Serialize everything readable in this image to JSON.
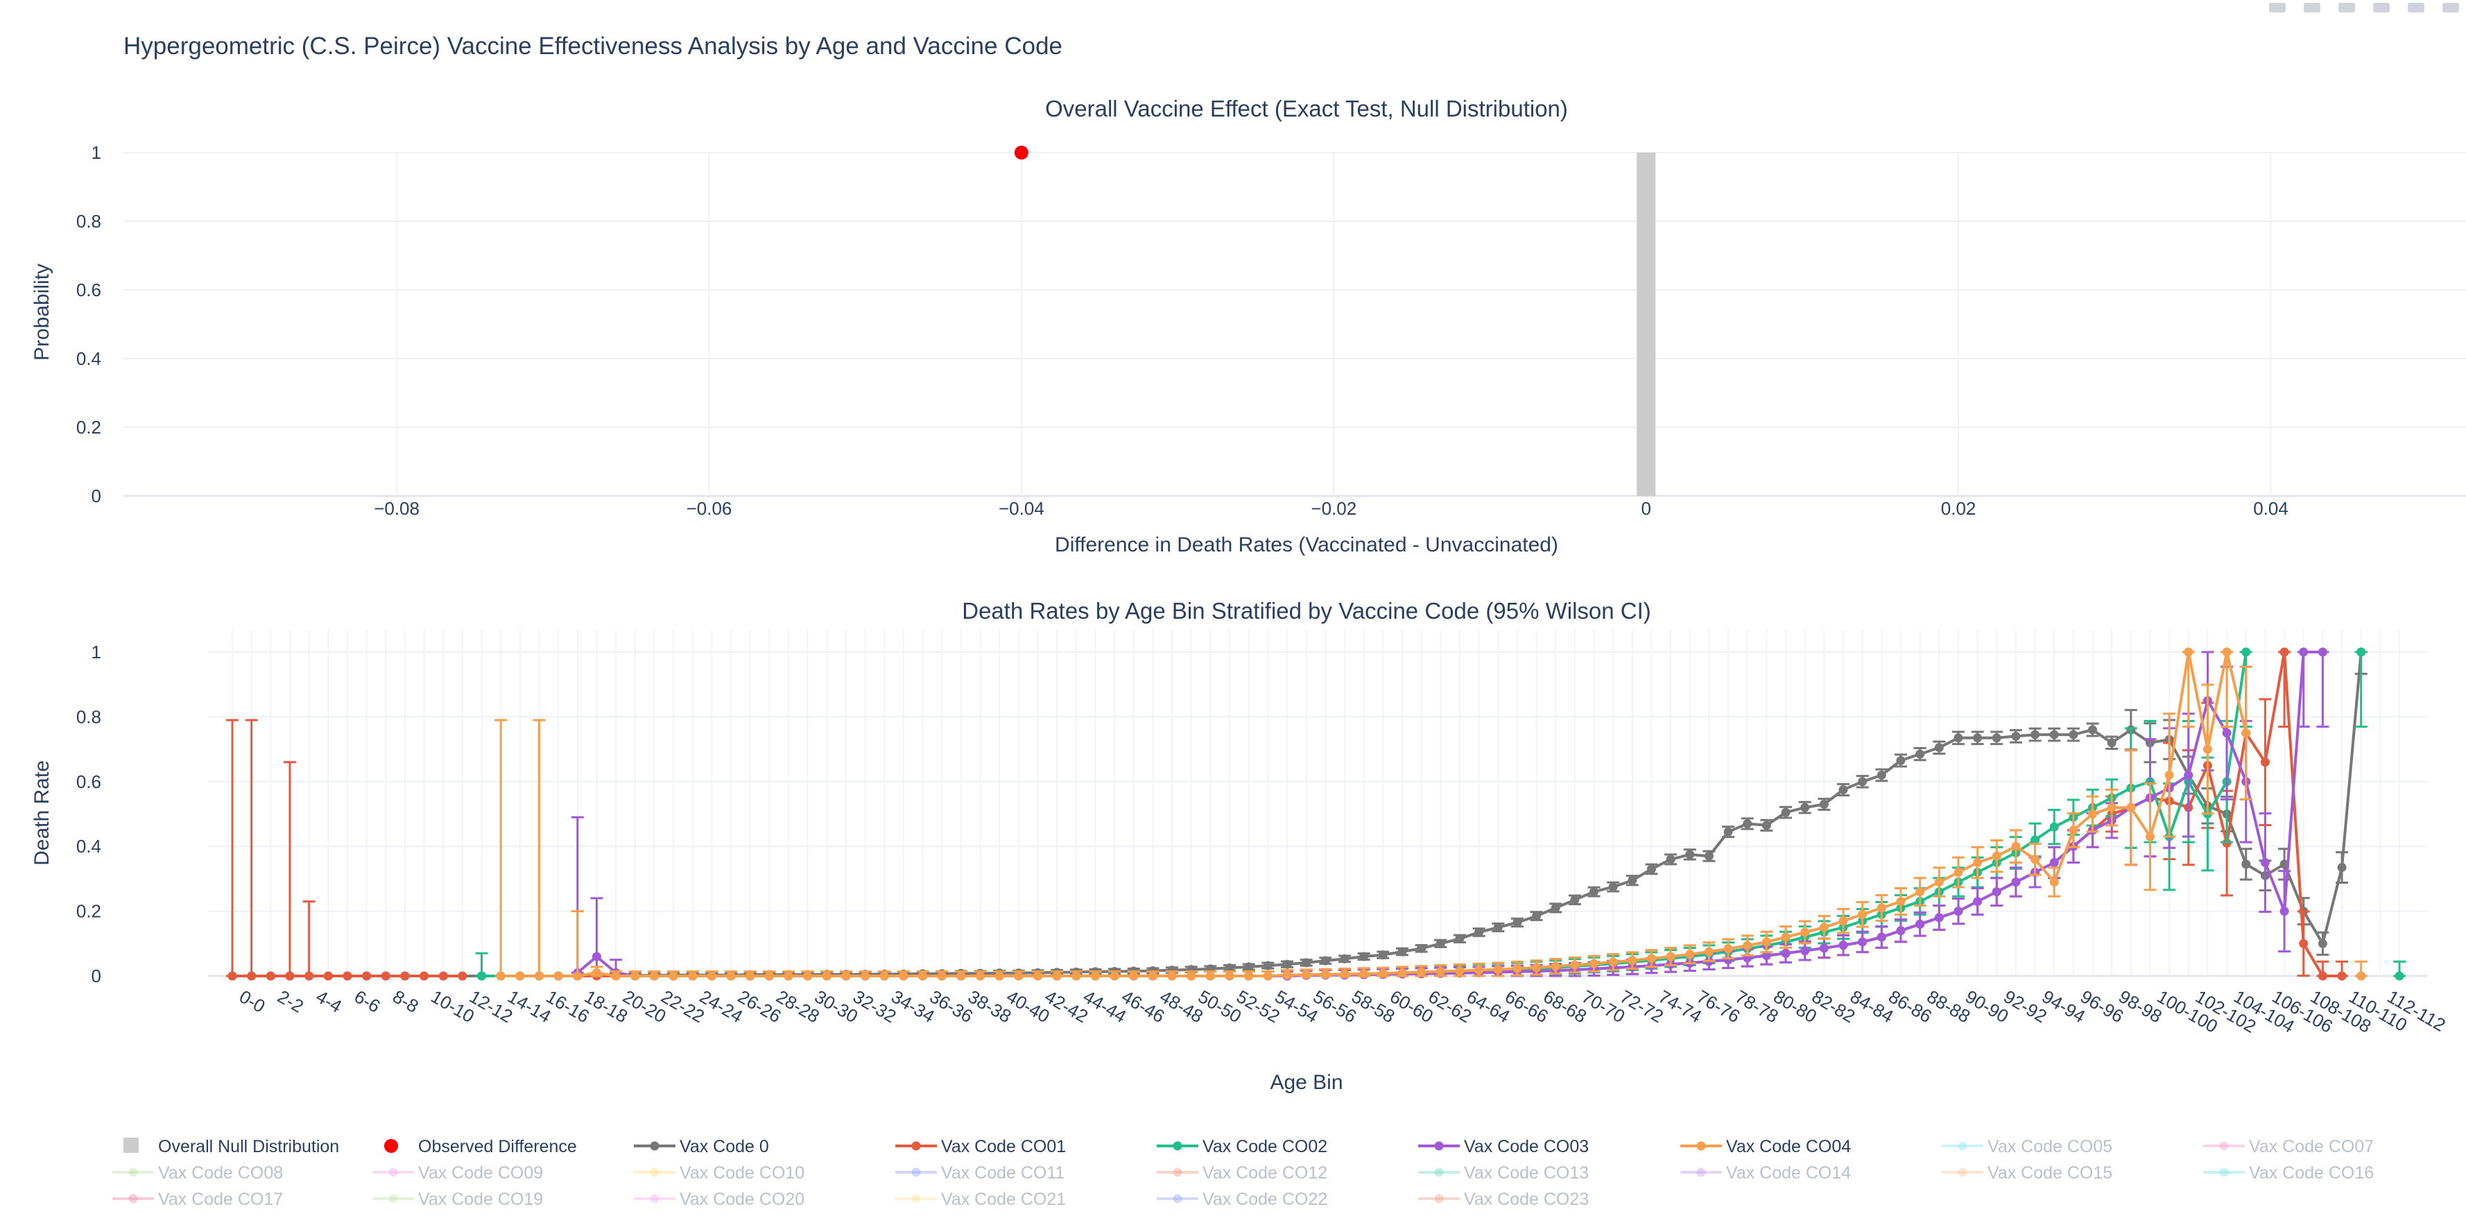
{
  "title": "Hypergeometric (C.S. Peirce) Vaccine Effectiveness Analysis by Age and Vaccine Code",
  "colors": {
    "null": "#cccccc",
    "observed": "#ff0000",
    "text": "#2a3f5f",
    "grid": "#eef0f4",
    "zeroline": "#e3e6eb"
  },
  "modebar": [
    "camera-icon",
    "zoom-icon",
    "pan-icon",
    "box-select-icon",
    "lasso-icon",
    "autoscale-icon"
  ],
  "chart_data": [
    {
      "type": "bar",
      "title": "Overall Vaccine Effect (Exact Test, Null Distribution)",
      "xlabel": "Difference in Death Rates (Vaccinated - Unvaccinated)",
      "ylabel": "Probability",
      "xlim": [
        -0.0975,
        0.0525
      ],
      "ylim": [
        0,
        1
      ],
      "x_ticks": [
        "−0.08",
        "−0.06",
        "−0.04",
        "−0.02",
        "0",
        "0.02",
        "0.04"
      ],
      "x_tick_values": [
        -0.08,
        -0.06,
        -0.04,
        -0.02,
        0,
        0.02,
        0.04
      ],
      "y_ticks": [
        "0",
        "0.2",
        "0.4",
        "0.6",
        "0.8",
        "1"
      ],
      "y_tick_values": [
        0,
        0.2,
        0.4,
        0.6,
        0.8,
        1
      ],
      "null_distribution": {
        "name": "Overall Null Distribution",
        "x": [
          0
        ],
        "y": [
          1
        ],
        "bar_width": 0.0012
      },
      "observed": {
        "name": "Observed Difference",
        "x": -0.04,
        "y": 1
      }
    },
    {
      "type": "line",
      "title": "Death Rates by Age Bin Stratified by Vaccine Code (95% Wilson CI)",
      "xlabel": "Age Bin",
      "ylabel": "Death Rate",
      "ylim": [
        0,
        1
      ],
      "y_ticks": [
        "0",
        "0.2",
        "0.4",
        "0.6",
        "0.8",
        "1"
      ],
      "y_tick_values": [
        0,
        0.2,
        0.4,
        0.6,
        0.8,
        1
      ],
      "x_tick_labels": [
        "0-0",
        "2-2",
        "4-4",
        "6-6",
        "8-8",
        "10-10",
        "12-12",
        "14-14",
        "16-16",
        "18-18",
        "20-20",
        "22-22",
        "24-24",
        "26-26",
        "28-28",
        "30-30",
        "32-32",
        "34-34",
        "36-36",
        "38-38",
        "40-40",
        "42-42",
        "44-44",
        "46-46",
        "48-48",
        "50-50",
        "52-52",
        "54-54",
        "56-56",
        "58-58",
        "60-60",
        "62-62",
        "64-64",
        "66-66",
        "68-68",
        "70-70",
        "72-72",
        "74-74",
        "76-76",
        "78-78",
        "80-80",
        "82-82",
        "84-84",
        "86-86",
        "88-88",
        "90-90",
        "92-92",
        "94-94",
        "96-96",
        "98-98",
        "100-100",
        "102-102",
        "104-104",
        "106-106",
        "108-108",
        "110-110",
        "112-112"
      ],
      "ages": [
        0,
        1,
        2,
        3,
        4,
        5,
        6,
        7,
        8,
        9,
        10,
        11,
        12,
        13,
        14,
        15,
        16,
        17,
        18,
        19,
        20,
        21,
        22,
        23,
        24,
        25,
        26,
        27,
        28,
        29,
        30,
        31,
        32,
        33,
        34,
        35,
        36,
        37,
        38,
        39,
        40,
        41,
        42,
        43,
        44,
        45,
        46,
        47,
        48,
        49,
        50,
        51,
        52,
        53,
        54,
        55,
        56,
        57,
        58,
        59,
        60,
        61,
        62,
        63,
        64,
        65,
        66,
        67,
        68,
        69,
        70,
        71,
        72,
        73,
        74,
        75,
        76,
        77,
        78,
        79,
        80,
        81,
        82,
        83,
        84,
        85,
        86,
        87,
        88,
        89,
        90,
        91,
        92,
        93,
        94,
        95,
        96,
        97,
        98,
        99,
        100,
        101,
        102,
        103,
        104,
        105,
        106,
        107,
        108,
        109,
        110,
        111,
        112,
        113
      ],
      "series": [
        {
          "name": "Vax Code 0",
          "color": "#777777",
          "values": [
            0,
            0,
            0,
            0,
            0,
            0,
            0,
            0,
            0,
            0,
            0,
            0,
            0,
            0,
            0,
            0,
            0,
            0,
            0,
            0.002,
            0.002,
            0.002,
            0.002,
            0.003,
            0.003,
            0.003,
            0.003,
            0.004,
            0.004,
            0.004,
            0.004,
            0.005,
            0.005,
            0.005,
            0.006,
            0.006,
            0.007,
            0.007,
            0.008,
            0.008,
            0.009,
            0.009,
            0.01,
            0.011,
            0.012,
            0.013,
            0.014,
            0.015,
            0.016,
            0.018,
            0.02,
            0.022,
            0.025,
            0.028,
            0.032,
            0.036,
            0.041,
            0.047,
            0.053,
            0.06,
            0.065,
            0.075,
            0.085,
            0.1,
            0.115,
            0.135,
            0.15,
            0.165,
            0.185,
            0.21,
            0.235,
            0.26,
            0.275,
            0.295,
            0.33,
            0.36,
            0.375,
            0.37,
            0.445,
            0.47,
            0.465,
            0.505,
            0.52,
            0.53,
            0.575,
            0.6,
            0.62,
            0.665,
            0.685,
            0.705,
            0.735,
            0.735,
            0.735,
            0.74,
            0.745,
            0.745,
            0.745,
            0.76,
            0.72,
            0.76,
            0.72,
            0.73,
            0.62,
            0.525,
            0.5,
            0.345,
            0.31,
            0.345,
            0.2,
            0.1,
            0.335,
            1,
            null,
            null
          ],
          "ci_low": [],
          "ci_high": []
        },
        {
          "name": "Vax Code CO01",
          "color": "#e45a3d",
          "values": [
            0,
            0,
            0,
            0,
            0,
            0,
            0,
            0,
            0,
            0,
            0,
            0,
            0,
            null,
            null,
            null,
            null,
            0,
            0,
            0,
            0,
            0,
            0,
            0,
            0,
            0,
            0,
            0,
            0,
            0,
            0,
            0,
            0,
            0,
            0,
            0,
            0,
            0,
            0,
            0,
            0,
            0,
            0,
            0,
            0,
            0,
            0,
            0,
            0,
            0,
            0,
            0,
            0,
            0,
            0,
            0,
            0.002,
            0.003,
            0.003,
            0.004,
            0.005,
            0.006,
            0.007,
            0.008,
            0.009,
            0.01,
            0.012,
            0.013,
            0.015,
            0.017,
            0.019,
            0.022,
            0.025,
            0.028,
            0.032,
            0.036,
            0.04,
            0.045,
            0.05,
            0.056,
            0.063,
            0.07,
            0.078,
            0.086,
            0.095,
            0.105,
            0.12,
            0.14,
            0.16,
            0.18,
            0.2,
            0.23,
            0.26,
            0.29,
            0.32,
            0.35,
            0.4,
            0.45,
            0.5,
            0.52,
            0.55,
            0.54,
            0.52,
            0.65,
            0.41,
            0.75,
            0.66,
            1,
            0.1,
            0,
            0,
            null,
            null,
            null
          ],
          "ci_low": [],
          "ci_high": []
        },
        {
          "name": "Vax Code CO02",
          "color": "#1fbe8a",
          "values": [
            null,
            null,
            null,
            null,
            null,
            null,
            null,
            null,
            null,
            null,
            null,
            null,
            null,
            0,
            0,
            0,
            0,
            0,
            null,
            null,
            null,
            null,
            null,
            null,
            null,
            null,
            null,
            null,
            null,
            null,
            null,
            null,
            null,
            null,
            null,
            null,
            null,
            null,
            null,
            null,
            null,
            null,
            null,
            null,
            null,
            null,
            null,
            null,
            null,
            null,
            null,
            null,
            null,
            null,
            null,
            null,
            null,
            null,
            0.005,
            0.006,
            0.007,
            0.008,
            0.01,
            0.012,
            0.014,
            0.016,
            0.018,
            0.02,
            0.023,
            0.026,
            0.03,
            0.034,
            0.038,
            0.043,
            0.048,
            0.054,
            0.06,
            0.067,
            0.075,
            0.084,
            0.094,
            0.105,
            0.12,
            0.135,
            0.15,
            0.17,
            0.19,
            0.21,
            0.23,
            0.26,
            0.29,
            0.32,
            0.35,
            0.38,
            0.42,
            0.46,
            0.49,
            0.52,
            0.55,
            0.58,
            0.6,
            0.43,
            0.6,
            0.5,
            0.6,
            1,
            null,
            null,
            null,
            null,
            null,
            1,
            null,
            0
          ],
          "ci_low": [],
          "ci_high": []
        },
        {
          "name": "Vax Code CO03",
          "color": "#a05ad7",
          "values": [
            null,
            null,
            null,
            null,
            null,
            null,
            null,
            null,
            null,
            null,
            null,
            null,
            null,
            null,
            null,
            null,
            null,
            null,
            0.01,
            0.06,
            0.01,
            0,
            0,
            0,
            0,
            0,
            0,
            0,
            0,
            0,
            0,
            0,
            0,
            0,
            0,
            0,
            0,
            0,
            0,
            0,
            0,
            0,
            0,
            0,
            0,
            0,
            0,
            0,
            0,
            0,
            0,
            0,
            0,
            0,
            0,
            0,
            0.002,
            0.003,
            0.003,
            0.004,
            0.005,
            0.006,
            0.007,
            0.008,
            0.009,
            0.01,
            0.012,
            0.013,
            0.015,
            0.017,
            0.019,
            0.022,
            0.025,
            0.028,
            0.032,
            0.036,
            0.04,
            0.045,
            0.05,
            0.056,
            0.063,
            0.07,
            0.078,
            0.086,
            0.095,
            0.105,
            0.12,
            0.14,
            0.16,
            0.18,
            0.2,
            0.23,
            0.26,
            0.29,
            0.32,
            0.35,
            0.4,
            0.45,
            0.48,
            0.52,
            0.55,
            0.58,
            0.62,
            0.85,
            0.75,
            0.6,
            0.35,
            0.2,
            1,
            1,
            null,
            null,
            null,
            null
          ],
          "ci_low": [],
          "ci_high": []
        },
        {
          "name": "Vax Code CO04",
          "color": "#f59e4c",
          "values": [
            null,
            null,
            null,
            null,
            null,
            null,
            null,
            null,
            null,
            null,
            null,
            null,
            null,
            null,
            0,
            0,
            0,
            0,
            0,
            0.01,
            0,
            0,
            0,
            0,
            0,
            0,
            0,
            0,
            0,
            0,
            0,
            0,
            0,
            0,
            0,
            0,
            0,
            0,
            0,
            0,
            0,
            0,
            0,
            0,
            0,
            0,
            0,
            0,
            0,
            0,
            0,
            0,
            0,
            0,
            0,
            0.003,
            0.004,
            0.005,
            0.006,
            0.007,
            0.008,
            0.01,
            0.012,
            0.014,
            0.016,
            0.018,
            0.02,
            0.023,
            0.026,
            0.03,
            0.034,
            0.038,
            0.043,
            0.048,
            0.054,
            0.06,
            0.067,
            0.075,
            0.084,
            0.094,
            0.105,
            0.12,
            0.135,
            0.15,
            0.17,
            0.19,
            0.21,
            0.23,
            0.26,
            0.29,
            0.32,
            0.35,
            0.37,
            0.4,
            0.36,
            0.29,
            0.45,
            0.5,
            0.52,
            0.52,
            0.43,
            0.62,
            1,
            0.7,
            1,
            0.75,
            null,
            null,
            null,
            null,
            null,
            0,
            null,
            null
          ],
          "ci_low": [],
          "ci_high": []
        }
      ],
      "legend": [
        {
          "name": "Overall Null Distribution",
          "kind": "square",
          "color": "#cccccc",
          "visible": true
        },
        {
          "name": "Observed Difference",
          "kind": "dot",
          "color": "#ff0000",
          "visible": true
        },
        {
          "name": "Vax Code 0",
          "kind": "line",
          "color": "#777777",
          "visible": true
        },
        {
          "name": "Vax Code CO01",
          "kind": "line",
          "color": "#e45a3d",
          "visible": true
        },
        {
          "name": "Vax Code CO02",
          "kind": "line",
          "color": "#1fbe8a",
          "visible": true
        },
        {
          "name": "Vax Code CO03",
          "kind": "line",
          "color": "#a05ad7",
          "visible": true
        },
        {
          "name": "Vax Code CO04",
          "kind": "line",
          "color": "#f59e4c",
          "visible": true
        },
        {
          "name": "Vax Code CO05",
          "kind": "line",
          "color": "#8ee7f2",
          "visible": false
        },
        {
          "name": "Vax Code CO07",
          "kind": "line",
          "color": "#f5a3c7",
          "visible": false
        },
        {
          "name": "Vax Code CO08",
          "kind": "line",
          "color": "#bfe3a7",
          "visible": false
        },
        {
          "name": "Vax Code CO09",
          "kind": "line",
          "color": "#f3b0e8",
          "visible": false
        },
        {
          "name": "Vax Code CO10",
          "kind": "line",
          "color": "#fbe08a",
          "visible": false
        },
        {
          "name": "Vax Code CO11",
          "kind": "line",
          "color": "#9aa6f5",
          "visible": false
        },
        {
          "name": "Vax Code CO12",
          "kind": "line",
          "color": "#f2a28e",
          "visible": false
        },
        {
          "name": "Vax Code CO13",
          "kind": "line",
          "color": "#80dcc0",
          "visible": false
        },
        {
          "name": "Vax Code CO14",
          "kind": "line",
          "color": "#c9a3ef",
          "visible": false
        },
        {
          "name": "Vax Code CO15",
          "kind": "line",
          "color": "#f8c9a0",
          "visible": false
        },
        {
          "name": "Vax Code CO16",
          "kind": "line",
          "color": "#88e3e8",
          "visible": false
        },
        {
          "name": "Vax Code CO17",
          "kind": "line",
          "color": "#f58fae",
          "visible": false
        },
        {
          "name": "Vax Code CO19",
          "kind": "line",
          "color": "#c7e5b4",
          "visible": false
        },
        {
          "name": "Vax Code CO20",
          "kind": "line",
          "color": "#f3b5f2",
          "visible": false
        },
        {
          "name": "Vax Code CO21",
          "kind": "line",
          "color": "#fce3a0",
          "visible": false
        },
        {
          "name": "Vax Code CO22",
          "kind": "line",
          "color": "#a4adf4",
          "visible": false
        },
        {
          "name": "Vax Code CO23",
          "kind": "line",
          "color": "#f4a893",
          "visible": false
        }
      ]
    }
  ]
}
